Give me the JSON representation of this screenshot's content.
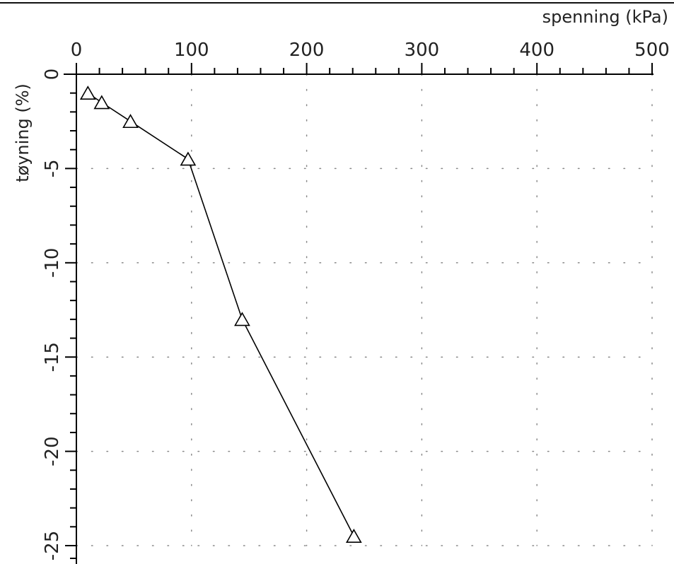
{
  "chart_data": {
    "type": "line",
    "title": "",
    "xlabel": "spenning (kPa)",
    "ylabel": "tøyning (%)",
    "x_axis_position": "top",
    "xlim": [
      0,
      500
    ],
    "ylim": [
      -25,
      0
    ],
    "x_ticks": [
      "0",
      "100",
      "200",
      "300",
      "400",
      "500"
    ],
    "y_ticks": [
      "0",
      "-5",
      "-10",
      "-15",
      "-20",
      "-25"
    ],
    "grid": "dotted",
    "marker": "triangle",
    "line_color": "#000000",
    "series": [
      {
        "x": [
          10,
          22,
          47,
          97,
          144,
          241
        ],
        "y": [
          -1.0,
          -1.5,
          -2.5,
          -4.5,
          -13.0,
          -24.5
        ]
      }
    ]
  }
}
